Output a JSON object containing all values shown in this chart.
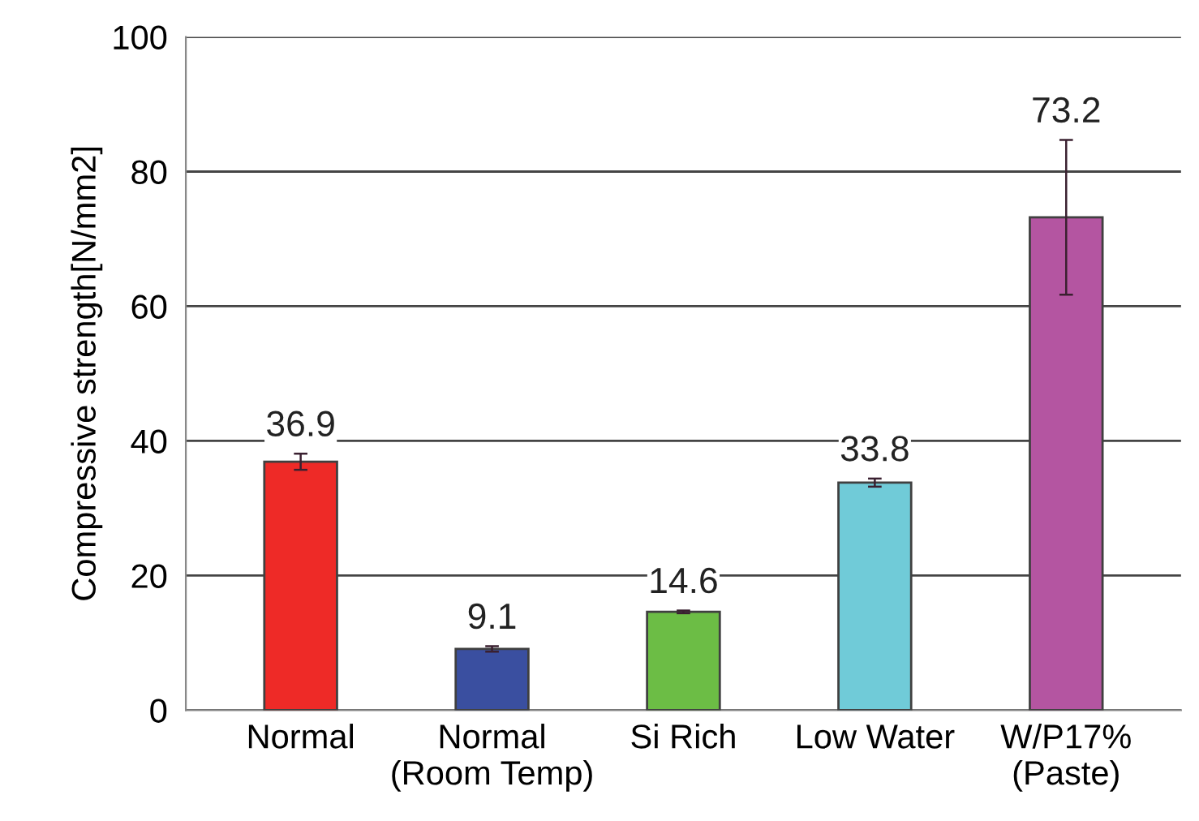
{
  "chart_data": {
    "type": "bar",
    "ylabel": "Compressive strength[N/mm2]",
    "categories": [
      "Normal",
      "Normal\n(Room Temp)",
      "Si Rich",
      "Low Water",
      "W/P17%\n(Paste)"
    ],
    "values": [
      36.9,
      9.1,
      14.6,
      33.8,
      73.2
    ],
    "errors": [
      1.2,
      0.4,
      0.2,
      0.6,
      11.5
    ],
    "colors": [
      "#ee2a27",
      "#3a4fa0",
      "#6cbd45",
      "#70cbd8",
      "#b455a1"
    ],
    "data_labels": true,
    "ylim": [
      0,
      100
    ],
    "yticks": [
      0,
      20,
      40,
      60,
      80,
      100
    ],
    "grid": "y"
  }
}
